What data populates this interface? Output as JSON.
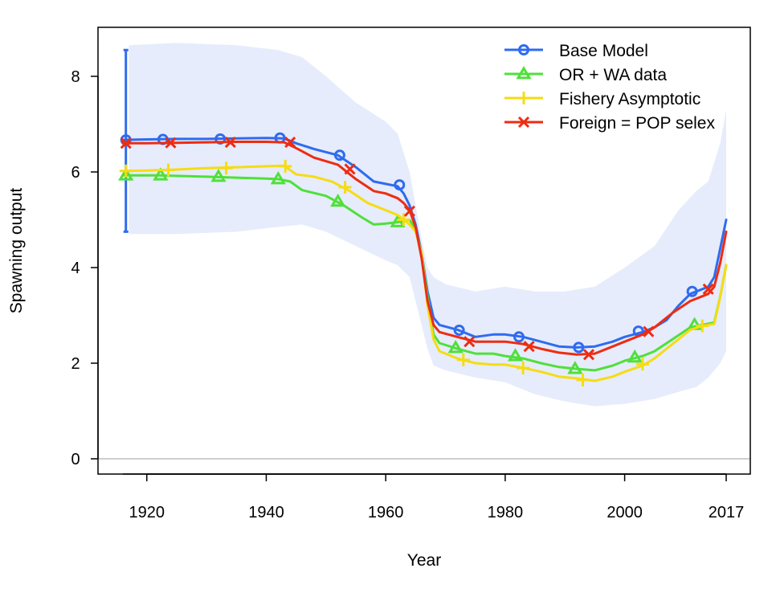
{
  "chart_data": {
    "type": "line",
    "xlabel": "Year",
    "ylabel": "Spawning output",
    "xlim": [
      1916,
      2017
    ],
    "ylim": [
      0,
      8.9
    ],
    "x_ticks": [
      1920,
      1940,
      1960,
      1980,
      2000,
      2017
    ],
    "x_tick_labels": [
      "1920",
      "1940",
      "1960",
      "1980",
      "2000",
      "2017"
    ],
    "y_ticks": [
      0,
      2,
      4,
      6,
      8
    ],
    "y_tick_labels": [
      "0",
      "2",
      "4",
      "6",
      "8"
    ],
    "grid": false,
    "legend_position": "top-right",
    "reference_line": {
      "y": 0,
      "color": "#bdbdbd"
    },
    "uncertainty_band": {
      "series": "Base Model",
      "color": "#e6ecfb",
      "x": [
        1917,
        1925,
        1935,
        1942,
        1946,
        1950,
        1955,
        1960,
        1962,
        1964,
        1966,
        1967,
        1968,
        1970,
        1975,
        1980,
        1985,
        1990,
        1995,
        2000,
        2005,
        2009,
        2012,
        2014,
        2016,
        2017
      ],
      "upper": [
        8.65,
        8.7,
        8.65,
        8.55,
        8.4,
        8.0,
        7.45,
        7.05,
        6.8,
        6.0,
        4.6,
        4.0,
        3.8,
        3.65,
        3.5,
        3.6,
        3.5,
        3.5,
        3.6,
        4.0,
        4.45,
        5.2,
        5.6,
        5.8,
        6.6,
        7.3
      ],
      "lower": [
        4.7,
        4.7,
        4.75,
        4.85,
        4.9,
        4.75,
        4.45,
        4.15,
        4.05,
        3.8,
        2.8,
        2.3,
        1.95,
        1.85,
        1.7,
        1.6,
        1.35,
        1.2,
        1.1,
        1.15,
        1.25,
        1.4,
        1.5,
        1.7,
        2.0,
        2.25
      ]
    },
    "initial_interval": {
      "x": 1916.5,
      "low": 4.75,
      "high": 8.55,
      "color": "#2f6bf0"
    },
    "series": [
      {
        "name": "Base Model",
        "color": "#2f6bf0",
        "marker": "circle",
        "x": [
          1916,
          1920,
          1925,
          1930,
          1935,
          1940,
          1943,
          1945,
          1948,
          1952,
          1955,
          1958,
          1960,
          1962,
          1963,
          1964,
          1965,
          1966,
          1967,
          1968,
          1969,
          1972,
          1975,
          1978,
          1980,
          1983,
          1986,
          1989,
          1992,
          1995,
          1998,
          2000,
          2003,
          2005,
          2007,
          2009,
          2011,
          2013,
          2014,
          2015,
          2016,
          2017
        ],
        "y": [
          6.67,
          6.68,
          6.69,
          6.69,
          6.7,
          6.71,
          6.7,
          6.6,
          6.48,
          6.35,
          6.1,
          5.8,
          5.75,
          5.7,
          5.55,
          5.3,
          4.9,
          4.3,
          3.5,
          2.95,
          2.8,
          2.7,
          2.55,
          2.6,
          2.6,
          2.55,
          2.45,
          2.35,
          2.33,
          2.35,
          2.45,
          2.55,
          2.65,
          2.75,
          2.9,
          3.2,
          3.45,
          3.55,
          3.6,
          3.8,
          4.4,
          5.0
        ],
        "markers_x": [
          1916.5,
          1922.7,
          1932.3,
          1942.3,
          1952.3,
          1962.3,
          1972.3,
          1982.3,
          1992.3,
          2002.3,
          2011.3
        ],
        "markers_y": [
          6.67,
          6.68,
          6.69,
          6.71,
          6.35,
          5.73,
          2.69,
          2.55,
          2.33,
          2.67,
          3.5
        ]
      },
      {
        "name": "OR + WA data",
        "color": "#4fe03a",
        "marker": "triangle",
        "x": [
          1916,
          1922,
          1930,
          1935,
          1940,
          1942,
          1944,
          1946,
          1950,
          1953,
          1956,
          1958,
          1960,
          1962,
          1963,
          1964,
          1965,
          1966,
          1967,
          1968,
          1969,
          1972,
          1975,
          1978,
          1980,
          1983,
          1986,
          1989,
          1992,
          1995,
          1998,
          2000,
          2003,
          2005,
          2008,
          2011,
          2013,
          2015,
          2016,
          2017
        ],
        "y": [
          5.93,
          5.93,
          5.9,
          5.88,
          5.86,
          5.85,
          5.8,
          5.62,
          5.5,
          5.3,
          5.05,
          4.9,
          4.92,
          4.95,
          4.98,
          5.0,
          4.8,
          4.3,
          3.4,
          2.6,
          2.42,
          2.3,
          2.2,
          2.2,
          2.15,
          2.1,
          2.0,
          1.92,
          1.88,
          1.85,
          1.95,
          2.05,
          2.15,
          2.25,
          2.5,
          2.75,
          2.8,
          2.85,
          3.4,
          4.05
        ],
        "markers_x": [
          1916.5,
          1922.3,
          1932.0,
          1942.0,
          1952.0,
          1962.0,
          1971.7,
          1981.7,
          1991.7,
          2001.7,
          2011.7
        ],
        "markers_y": [
          5.93,
          5.93,
          5.9,
          5.85,
          5.38,
          4.95,
          2.32,
          2.15,
          1.88,
          2.12,
          2.8
        ]
      },
      {
        "name": "Fishery Asymptotic",
        "color": "#f5dc14",
        "marker": "plus",
        "x": [
          1916,
          1920,
          1925,
          1930,
          1935,
          1940,
          1943,
          1945,
          1948,
          1951,
          1954,
          1957,
          1960,
          1962,
          1963,
          1964,
          1965,
          1966,
          1967,
          1968,
          1969,
          1972,
          1975,
          1978,
          1980,
          1983,
          1986,
          1989,
          1992,
          1995,
          1998,
          2000,
          2003,
          2005,
          2008,
          2011,
          2013,
          2015,
          2016,
          2017
        ],
        "y": [
          6.02,
          6.03,
          6.05,
          6.08,
          6.1,
          6.12,
          6.13,
          5.95,
          5.9,
          5.8,
          5.6,
          5.35,
          5.2,
          5.1,
          5.0,
          4.9,
          4.75,
          4.3,
          3.2,
          2.5,
          2.25,
          2.1,
          2.0,
          1.97,
          1.97,
          1.9,
          1.82,
          1.72,
          1.68,
          1.63,
          1.72,
          1.82,
          1.95,
          2.1,
          2.4,
          2.7,
          2.78,
          2.82,
          3.4,
          4.05
        ],
        "markers_x": [
          1916.5,
          1923.6,
          1933.3,
          1943.2,
          1953.2,
          1963.0,
          1973.0,
          1983.0,
          1993.0,
          2003.0,
          2013.0
        ],
        "markers_y": [
          6.02,
          6.04,
          6.08,
          6.12,
          5.68,
          5.0,
          2.07,
          1.9,
          1.65,
          1.98,
          2.78
        ]
      },
      {
        "name": "Foreign = POP selex",
        "color": "#ee2c12",
        "marker": "x",
        "x": [
          1916,
          1920,
          1925,
          1930,
          1935,
          1940,
          1943,
          1945,
          1948,
          1952,
          1955,
          1958,
          1960,
          1962,
          1963,
          1964,
          1965,
          1966,
          1967,
          1968,
          1969,
          1972,
          1975,
          1978,
          1980,
          1983,
          1986,
          1989,
          1992,
          1995,
          1998,
          2000,
          2003,
          2005,
          2008,
          2011,
          2013,
          2014,
          2015,
          2016,
          2017
        ],
        "y": [
          6.6,
          6.6,
          6.61,
          6.62,
          6.63,
          6.63,
          6.62,
          6.5,
          6.3,
          6.15,
          5.85,
          5.6,
          5.55,
          5.45,
          5.35,
          5.2,
          4.85,
          4.2,
          3.3,
          2.8,
          2.65,
          2.55,
          2.45,
          2.45,
          2.45,
          2.4,
          2.3,
          2.22,
          2.18,
          2.2,
          2.35,
          2.45,
          2.6,
          2.75,
          3.05,
          3.3,
          3.4,
          3.45,
          3.6,
          4.1,
          4.75
        ],
        "markers_x": [
          1916.5,
          1924.0,
          1934.0,
          1944.0,
          1954.0,
          1964.0,
          1974.0,
          1984.0,
          1994.0,
          2004.0,
          2014.0
        ],
        "markers_y": [
          6.6,
          6.61,
          6.62,
          6.62,
          6.06,
          5.18,
          2.45,
          2.35,
          2.18,
          2.66,
          3.55
        ]
      }
    ]
  }
}
